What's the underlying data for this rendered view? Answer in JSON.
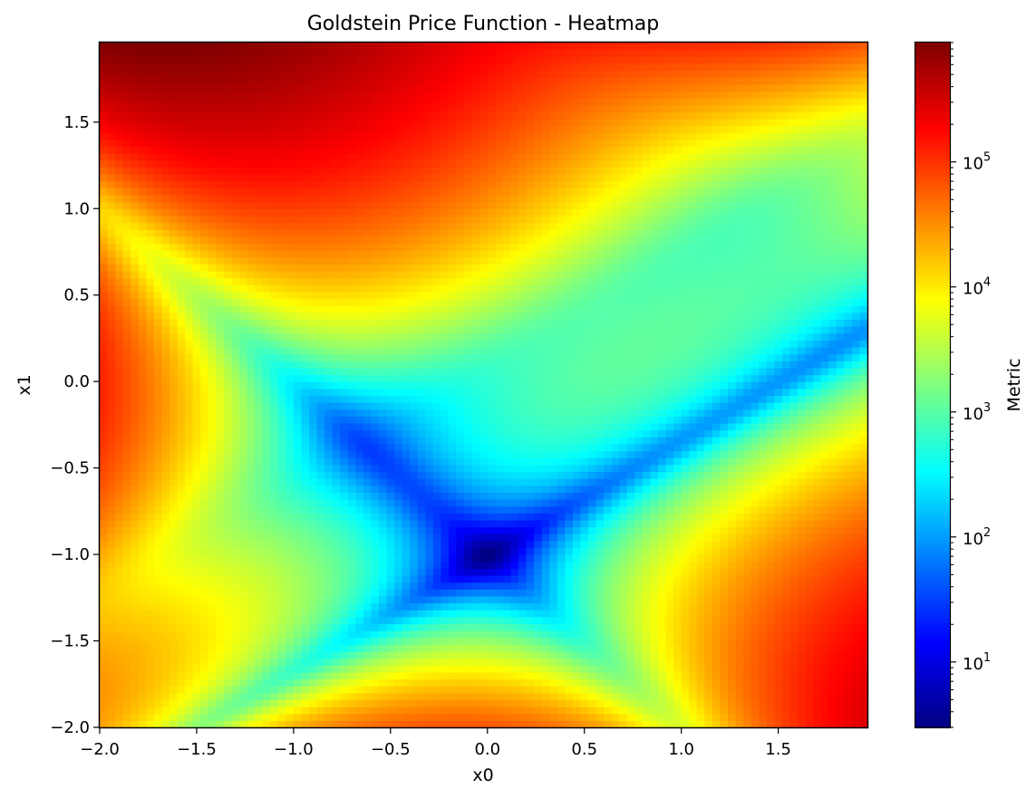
{
  "chart_data": {
    "type": "heatmap",
    "title": "Goldstein Price Function - Heatmap",
    "xlabel": "x0",
    "ylabel": "x1",
    "xlim": [
      -2.0,
      1.96
    ],
    "ylim": [
      -2.0,
      1.96
    ],
    "x_ticks": [
      -2.0,
      -1.5,
      -1.0,
      -0.5,
      0.0,
      0.5,
      1.0,
      1.5
    ],
    "y_ticks": [
      -2.0,
      -1.5,
      -1.0,
      -0.5,
      0.0,
      0.5,
      1.0,
      1.5
    ],
    "x_tick_labels": [
      "−2.0",
      "−1.5",
      "−1.0",
      "−0.5",
      "0.0",
      "0.5",
      "1.0",
      "1.5"
    ],
    "y_tick_labels": [
      "−2.0",
      "−1.5",
      "−1.0",
      "−0.5",
      "0.0",
      "0.5",
      "1.0",
      "1.5"
    ],
    "grid": {
      "x_start": -2.0,
      "x_step": 0.04,
      "nx": 99,
      "y_start": -2.0,
      "y_step": 0.04,
      "ny": 99,
      "function": "goldstein_price"
    },
    "colormap": "jet",
    "color_scale": "log",
    "colorbar": {
      "label": "Metric",
      "range": [
        3,
        900000
      ],
      "major_ticks": [
        10,
        100,
        1000,
        10000,
        100000
      ],
      "major_labels": [
        {
          "base": "10",
          "exp": "1"
        },
        {
          "base": "10",
          "exp": "2"
        },
        {
          "base": "10",
          "exp": "3"
        },
        {
          "base": "10",
          "exp": "4"
        },
        {
          "base": "10",
          "exp": "5"
        }
      ]
    }
  }
}
